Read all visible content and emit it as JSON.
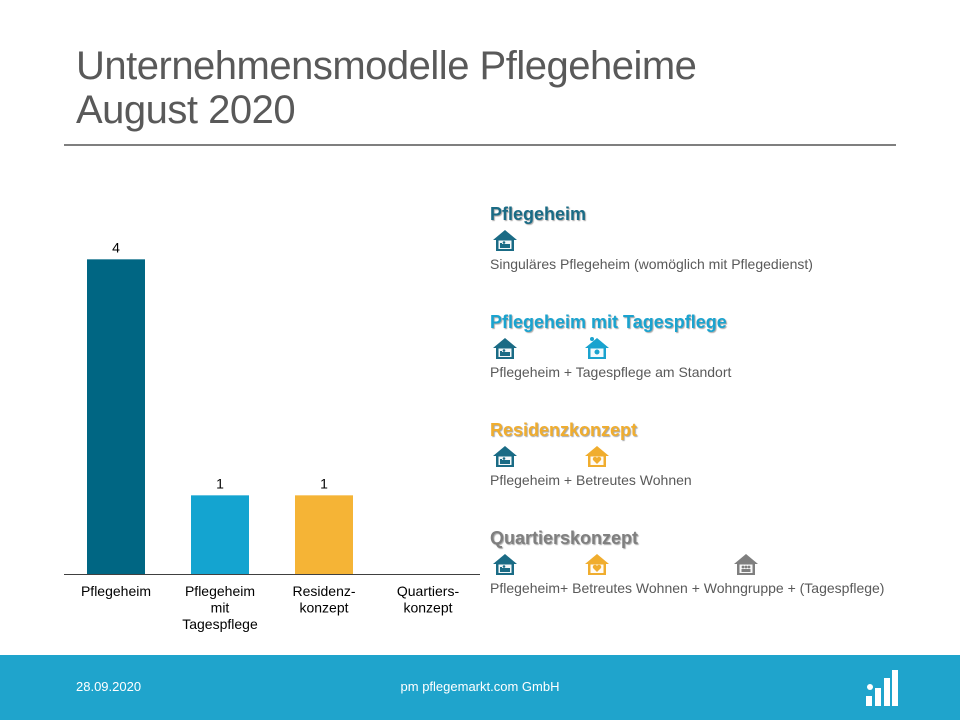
{
  "slide": {
    "title_line1": "Unternehmensmodelle Pflegeheime",
    "title_line2": "August 2020"
  },
  "chart_data": {
    "type": "bar",
    "categories": [
      "Pflegeheim",
      "Pflegeheim mit Tagespflege",
      "Residenz- konzept",
      "Quartiers- konzept"
    ],
    "category_lines": [
      [
        "Pflegeheim"
      ],
      [
        "Pflegeheim",
        "mit",
        "Tagespflege"
      ],
      [
        "Residenz-",
        "konzept"
      ],
      [
        "Quartiers-",
        "konzept"
      ]
    ],
    "values": [
      4,
      1,
      1,
      0
    ],
    "data_labels": [
      "4",
      "1",
      "1",
      ""
    ],
    "colors": [
      "#006683",
      "#14a4d0",
      "#f5b436",
      "#7f7f7f"
    ],
    "ylim": [
      0,
      4.5
    ],
    "grid": false,
    "legend": "none",
    "title": "",
    "xlabel": "",
    "ylabel": ""
  },
  "legend": [
    {
      "title": "Pflegeheim",
      "color": "#1a6b85",
      "icons": [
        "house-bed-icon"
      ],
      "icon_colors": [
        "#1a6b85"
      ],
      "description": "Singuläres Pflegeheim (womöglich mit Pflegedienst)"
    },
    {
      "title": "Pflegeheim mit Tagespflege",
      "color": "#1aa3cf",
      "icons": [
        "house-bed-icon",
        "house-sun-icon"
      ],
      "icon_colors": [
        "#1a6b85",
        "#1aa3cf"
      ],
      "description": "Pflegeheim + Tagespflege am Standort"
    },
    {
      "title": "Residenzkonzept",
      "color": "#f0ad2e",
      "icons": [
        "house-bed-icon",
        "house-heart-icon"
      ],
      "icon_colors": [
        "#1a6b85",
        "#f0ad2e"
      ],
      "description": "Pflegeheim + Betreutes Wohnen"
    },
    {
      "title": "Quartierskonzept",
      "color": "#7f7f7f",
      "icons": [
        "house-bed-icon",
        "house-heart-icon",
        "house-people-icon"
      ],
      "icon_colors": [
        "#1a6b85",
        "#f0ad2e",
        "#7f7f7f"
      ],
      "description": "Pflegeheim+ Betreutes Wohnen + Wohngruppe + (Tagespflege)"
    }
  ],
  "footer": {
    "date": "28.09.2020",
    "company": "pm pflegemarkt.com GmbH",
    "logo_icon": "pflegemarkt-logo-icon"
  }
}
